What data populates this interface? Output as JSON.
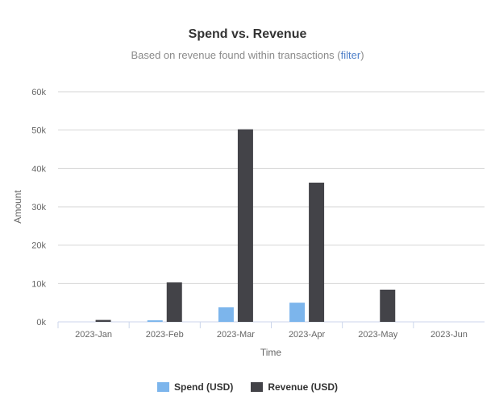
{
  "chart_data": {
    "type": "bar",
    "title": "Spend vs. Revenue",
    "subtitle_prefix": "Based on revenue found within transactions (",
    "subtitle_link": "filter",
    "subtitle_suffix": ")",
    "xlabel": "Time",
    "ylabel": "Amount",
    "categories": [
      "2023-Jan",
      "2023-Feb",
      "2023-Mar",
      "2023-Apr",
      "2023-May",
      "2023-Jun"
    ],
    "yticks": [
      "0k",
      "10k",
      "20k",
      "30k",
      "40k",
      "50k",
      "60k"
    ],
    "ylim": [
      0,
      60000
    ],
    "grid": true,
    "legend_position": "bottom",
    "series": [
      {
        "name": "Spend (USD)",
        "color": "#7cb5ec",
        "values": [
          0,
          400,
          3800,
          5000,
          0,
          0
        ]
      },
      {
        "name": "Revenue (USD)",
        "color": "#434348",
        "values": [
          500,
          10300,
          50200,
          36300,
          8400,
          0
        ]
      }
    ]
  }
}
